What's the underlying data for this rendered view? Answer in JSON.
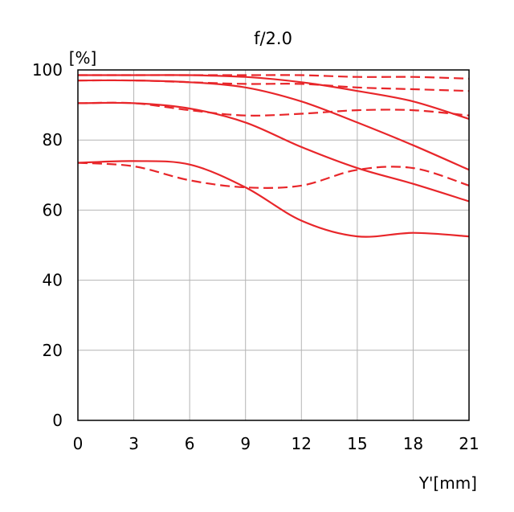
{
  "chart_data": {
    "type": "line",
    "title": "f/2.0",
    "xlabel": "Y'[mm]",
    "ylabel": "[%]",
    "xlim": [
      0,
      21
    ],
    "ylim": [
      0,
      100
    ],
    "xticks": [
      "0",
      "3",
      "6",
      "9",
      "12",
      "15",
      "18",
      "21"
    ],
    "yticks": [
      "0",
      "20",
      "40",
      "60",
      "80",
      "100"
    ],
    "grid": true,
    "line_color": "#e8262a",
    "series": [
      {
        "style": "solid",
        "x": [
          0,
          3,
          6,
          9,
          12,
          15,
          18,
          21
        ],
        "y": [
          98.5,
          98.5,
          98.5,
          98,
          96.5,
          94,
          91,
          86
        ]
      },
      {
        "style": "dashed",
        "x": [
          0,
          3,
          6,
          9,
          12,
          15,
          18,
          21
        ],
        "y": [
          98.5,
          98.5,
          98.5,
          98.5,
          98.5,
          98,
          98,
          97.5
        ]
      },
      {
        "style": "solid",
        "x": [
          0,
          3,
          6,
          9,
          12,
          15,
          18,
          21
        ],
        "y": [
          97,
          97,
          96.5,
          95,
          91,
          85,
          78.5,
          71.5
        ]
      },
      {
        "style": "dashed",
        "x": [
          0,
          3,
          6,
          9,
          12,
          15,
          18,
          21
        ],
        "y": [
          97,
          97,
          96.5,
          96,
          96,
          95,
          94.5,
          94
        ]
      },
      {
        "style": "solid",
        "x": [
          0,
          3,
          6,
          9,
          12,
          15,
          18,
          21
        ],
        "y": [
          90.5,
          90.5,
          89,
          85,
          78,
          72,
          67.5,
          62.5
        ]
      },
      {
        "style": "dashed",
        "x": [
          0,
          3,
          6,
          9,
          12,
          15,
          18,
          21
        ],
        "y": [
          90.5,
          90.5,
          88.5,
          87,
          87.5,
          88.5,
          88.5,
          87
        ]
      },
      {
        "style": "solid",
        "x": [
          0,
          3,
          6,
          9,
          12,
          15,
          18,
          21
        ],
        "y": [
          73.5,
          74,
          73,
          66.5,
          57,
          52.5,
          53.5,
          52.5
        ]
      },
      {
        "style": "dashed",
        "x": [
          0,
          3,
          6,
          9,
          12,
          15,
          18,
          21
        ],
        "y": [
          73.5,
          72.5,
          68.5,
          66.5,
          67,
          71.5,
          72,
          67
        ]
      }
    ]
  }
}
